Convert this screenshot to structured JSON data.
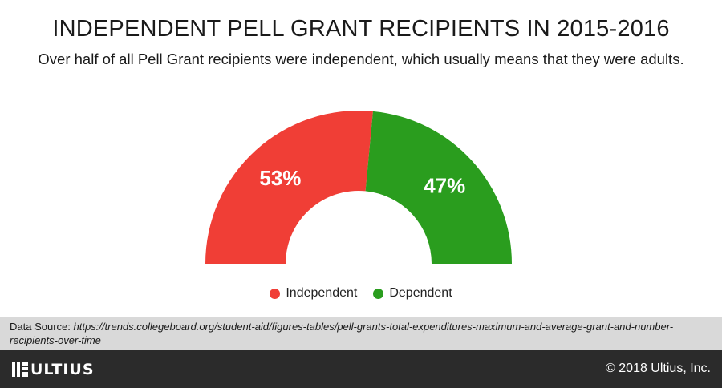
{
  "title": "INDEPENDENT PELL GRANT RECIPIENTS IN 2015-2016",
  "subtitle": "Over half of all Pell Grant recipients were independent, which usually means that they were adults.",
  "chart_data": {
    "type": "pie",
    "style": "semicircle-donut",
    "categories": [
      "Independent",
      "Dependent"
    ],
    "values": [
      53,
      47
    ],
    "labels": [
      "53%",
      "47%"
    ],
    "colors": [
      "#f03e36",
      "#2a9d1e"
    ],
    "legend_position": "bottom"
  },
  "source": {
    "prefix": "Data Source:",
    "url": "https://trends.collegeboard.org/student-aid/figures-tables/pell-grants-total-expenditures-maximum-and-average-grant-and-number-recipients-over-time"
  },
  "footer": {
    "logo_text": "ULTIUS",
    "copyright": "© 2018 Ultius, Inc."
  }
}
